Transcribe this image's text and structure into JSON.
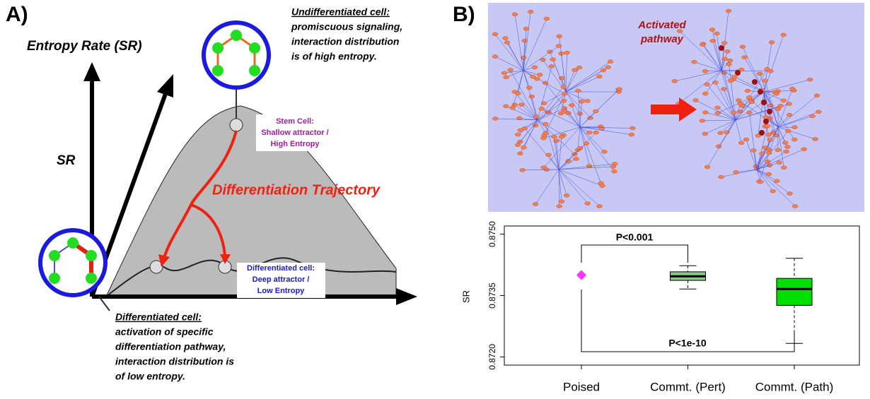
{
  "panel_a": {
    "label": "A)",
    "y_axis_title": "Entropy Rate (SR)",
    "axis_label": "SR",
    "top_note": [
      "Undifferentiated cell:",
      "promiscuous signaling,",
      "interaction distribution",
      "is of high entropy."
    ],
    "stem_cell": [
      "Stem Cell:",
      "Shallow attractor /",
      "High Entropy"
    ],
    "trajectory": "Differentiation Trajectory",
    "diff_cell": [
      "Differentiated cell:",
      "Deep attractor /",
      "Low Entropy"
    ],
    "bottom_note": [
      "Differentiated cell:",
      "activation of specific",
      "differentiation pathway,",
      "interaction distribution is",
      "of low entropy."
    ]
  },
  "panel_b": {
    "label": "B)",
    "pathway_label": [
      "Activated",
      "pathway"
    ]
  },
  "chart_data": {
    "type": "box",
    "ylabel": "SR",
    "categories": [
      "Poised",
      "Commt. (Pert)",
      "Commt. (Path)"
    ],
    "points": [
      0.874,
      null,
      null
    ],
    "boxes": [
      null,
      {
        "whislo": 0.87366,
        "q1": 0.87387,
        "med": 0.87397,
        "q3": 0.87408,
        "whishi": 0.87423
      },
      {
        "whislo": 0.87233,
        "q1": 0.87326,
        "med": 0.87366,
        "q3": 0.87392,
        "whishi": 0.87441
      }
    ],
    "colors": [
      "#ff33ff",
      "#8ac88a",
      "#00e000"
    ],
    "ylim": [
      0.8718,
      0.8752
    ],
    "yticks": [
      {
        "value": 0.872,
        "label": "0.8720"
      },
      0.8735,
      {
        "value": 0.875,
        "label": "0.8750"
      }
    ],
    "annotations": [
      "P<0.001",
      "P<1e-10"
    ]
  }
}
